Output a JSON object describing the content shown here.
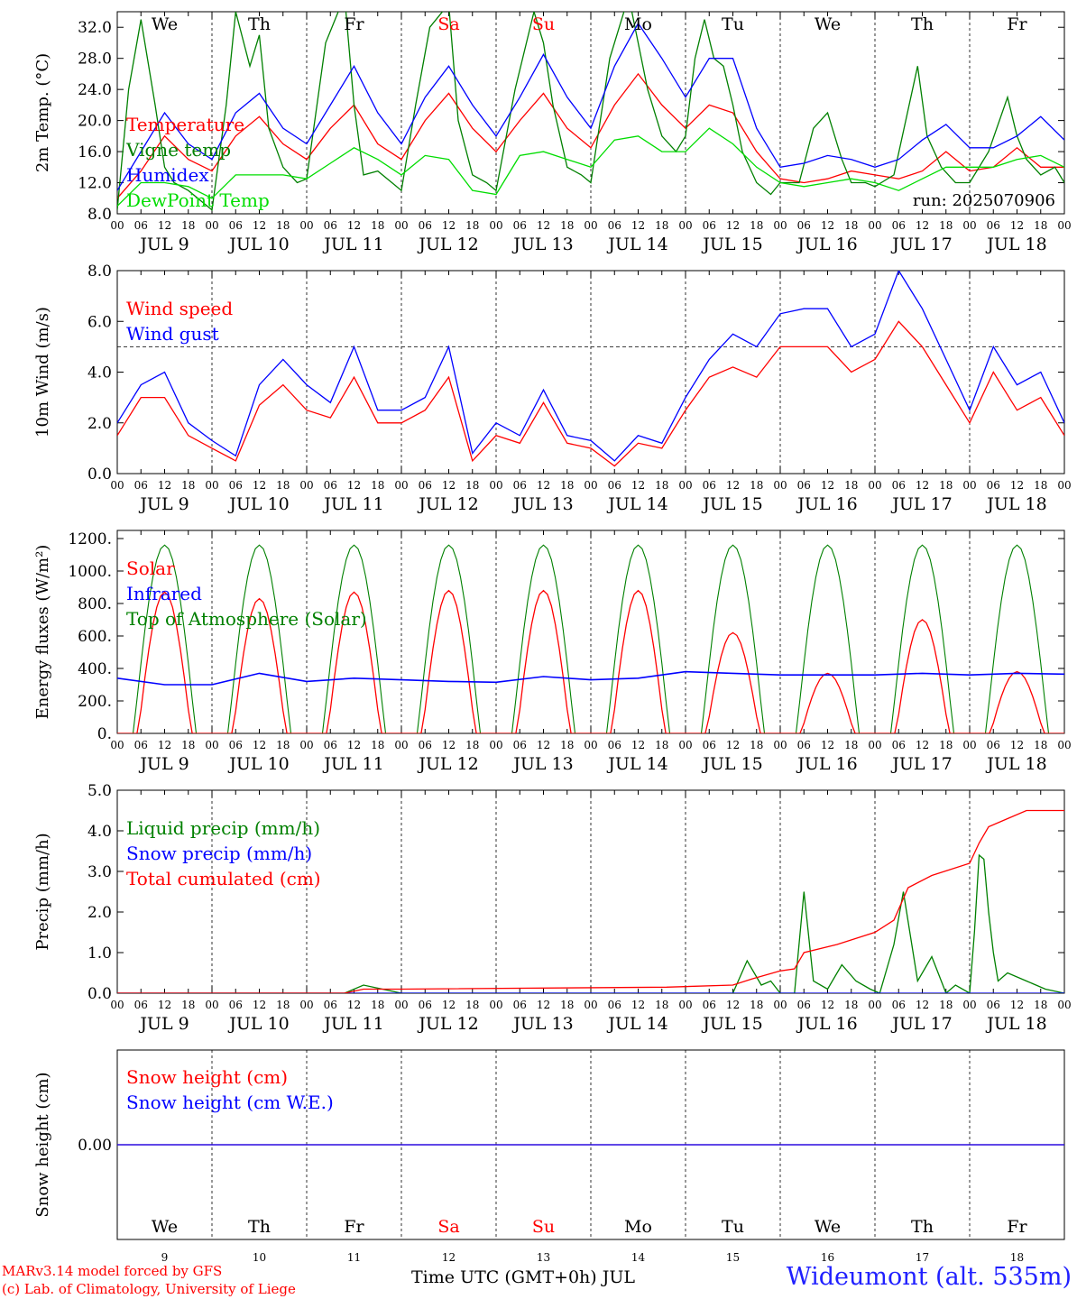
{
  "station": "Wideumont (alt. 535m)",
  "credits": [
    "MARv3.14 model forced by GFS",
    "(c) Lab. of Climatology, University of Liege"
  ],
  "xlabel": "Time UTC (GMT+0h) JUL",
  "run_label": "run: 2025070906",
  "colors": {
    "red": "#ff0000",
    "green": "#008000",
    "blue": "#0000ff",
    "lightgreen": "#00dd00",
    "weekend": "#ff0000"
  },
  "chart_data": {
    "type": "line",
    "x_axis": {
      "hours": [
        "00",
        "06",
        "12",
        "18"
      ],
      "days": [
        "JUL  9",
        "JUL 10",
        "JUL 11",
        "JUL 12",
        "JUL 13",
        "JUL 14",
        "JUL 15",
        "JUL 16",
        "JUL 17",
        "JUL 18"
      ],
      "weekdays": [
        "We",
        "Th",
        "Fr",
        "Sa",
        "Su",
        "Mo",
        "Tu",
        "We",
        "Th",
        "Fr"
      ],
      "weekend_index": [
        3,
        4
      ],
      "day_numbers": [
        "9",
        "10",
        "11",
        "12",
        "13",
        "14",
        "15",
        "16",
        "17",
        "18"
      ],
      "xlim_days": [
        0,
        10
      ]
    },
    "panels": [
      {
        "id": "temperature",
        "ylabel": "2m Temp. (°C)",
        "ylim": [
          8,
          34
        ],
        "yticks": [
          "8.0",
          "12.0",
          "16.0",
          "20.0",
          "24.0",
          "28.0",
          "32.0"
        ],
        "ytick_values": [
          8,
          12,
          16,
          20,
          24,
          28,
          32
        ],
        "series": [
          {
            "name": "Temperature",
            "color": "red",
            "x": [
              0,
              0.25,
              0.5,
              0.75,
              1,
              1.25,
              1.5,
              1.75,
              2,
              2.25,
              2.5,
              2.75,
              3,
              3.25,
              3.5,
              3.75,
              4,
              4.25,
              4.5,
              4.75,
              5,
              5.25,
              5.5,
              5.75,
              6,
              6.25,
              6.5,
              6.75,
              7,
              7.25,
              7.5,
              7.75,
              8,
              8.25,
              8.5,
              8.75,
              9,
              9.25,
              9.5,
              9.75,
              10
            ],
            "y": [
              10,
              13.5,
              18,
              15,
              13.5,
              18,
              20.5,
              17,
              15,
              19,
              22,
              17,
              15,
              20,
              23.5,
              19,
              16,
              20,
              23.5,
              19,
              16.5,
              22,
              26,
              22,
              19,
              22,
              21,
              16,
              12.5,
              12,
              12.5,
              13.5,
              13,
              12.5,
              13.5,
              16,
              13.5,
              14,
              16.5,
              14,
              14
            ]
          },
          {
            "name": "Vigne temp",
            "color": "green",
            "x": [
              0,
              0.12,
              0.25,
              0.4,
              0.5,
              0.6,
              0.75,
              0.9,
              1,
              1.15,
              1.25,
              1.4,
              1.5,
              1.6,
              1.75,
              1.9,
              2,
              2.2,
              2.4,
              2.5,
              2.6,
              2.75,
              2.9,
              3,
              3.15,
              3.3,
              3.5,
              3.6,
              3.75,
              3.9,
              4,
              4.2,
              4.4,
              4.5,
              4.6,
              4.75,
              4.9,
              5,
              5.2,
              5.4,
              5.5,
              5.6,
              5.75,
              5.9,
              6,
              6.1,
              6.2,
              6.3,
              6.4,
              6.5,
              6.6,
              6.75,
              6.9,
              7,
              7.2,
              7.35,
              7.5,
              7.65,
              7.75,
              7.9,
              8,
              8.2,
              8.45,
              8.55,
              8.7,
              8.85,
              9,
              9.2,
              9.4,
              9.5,
              9.6,
              9.75,
              9.9,
              10
            ],
            "y": [
              8.5,
              24,
              33,
              22,
              14,
              12,
              11,
              9.5,
              8.5,
              22,
              34,
              27,
              31,
              19,
              14,
              12,
              12.5,
              30,
              36,
              22,
              13,
              13.5,
              12,
              11,
              22,
              32,
              35,
              20,
              13,
              12,
              11,
              24,
              34,
              30,
              22,
              14,
              13,
              12,
              28,
              36,
              30,
              24,
              18,
              16,
              18,
              28,
              33,
              28,
              27,
              22,
              16,
              12,
              10.5,
              12,
              12,
              19,
              21,
              15,
              12,
              12,
              11.5,
              13,
              27,
              18,
              14,
              12,
              12,
              16,
              23,
              18,
              15,
              13,
              14,
              12
            ]
          },
          {
            "name": "Humidex",
            "color": "blue",
            "x": [
              0,
              0.25,
              0.5,
              0.75,
              1,
              1.25,
              1.5,
              1.75,
              2,
              2.25,
              2.5,
              2.75,
              3,
              3.25,
              3.5,
              3.75,
              4,
              4.25,
              4.5,
              4.75,
              5,
              5.25,
              5.5,
              5.75,
              6,
              6.25,
              6.5,
              6.75,
              7,
              7.25,
              7.5,
              7.75,
              8,
              8.25,
              8.5,
              8.75,
              9,
              9.25,
              9.5,
              9.75,
              10
            ],
            "y": [
              11,
              16,
              21,
              17,
              15,
              21,
              23.5,
              19,
              17,
              22,
              27,
              21,
              17,
              23,
              27,
              22,
              18,
              23,
              28.5,
              23,
              19,
              27,
              32.5,
              28,
              23,
              28,
              28,
              19,
              14,
              14.5,
              15.5,
              15,
              14,
              15,
              17.5,
              19.5,
              16.5,
              16.5,
              18,
              20.5,
              17.5
            ]
          },
          {
            "name": "DewPoint Temp",
            "color": "lightgreen",
            "x": [
              0,
              0.25,
              0.5,
              0.75,
              1,
              1.25,
              1.5,
              1.75,
              2,
              2.25,
              2.5,
              2.75,
              3,
              3.25,
              3.5,
              3.75,
              4,
              4.25,
              4.5,
              4.75,
              5,
              5.25,
              5.5,
              5.75,
              6,
              6.25,
              6.5,
              6.75,
              7,
              7.25,
              7.5,
              7.75,
              8,
              8.25,
              8.5,
              8.75,
              9,
              9.25,
              9.5,
              9.75,
              10
            ],
            "y": [
              9,
              12,
              12,
              11.5,
              10,
              13,
              13,
              13,
              12.5,
              14.5,
              16.5,
              15,
              13,
              15.5,
              15,
              11,
              10.5,
              15.5,
              16,
              15,
              14,
              17.5,
              18,
              16,
              16,
              19,
              17,
              14,
              12,
              11.5,
              12,
              12.5,
              12,
              11,
              12.5,
              14,
              14,
              14,
              15,
              15.5,
              14
            ]
          }
        ]
      },
      {
        "id": "wind",
        "ylabel": "10m Wind (m/s)",
        "ylim": [
          0,
          8
        ],
        "yticks": [
          "0.0",
          "2.0",
          "4.0",
          "6.0",
          "8.0"
        ],
        "ytick_values": [
          0,
          2,
          4,
          6,
          8
        ],
        "hline": 5,
        "series": [
          {
            "name": "Wind speed",
            "color": "red",
            "x": [
              0,
              0.25,
              0.5,
              0.75,
              1,
              1.25,
              1.5,
              1.75,
              2,
              2.25,
              2.5,
              2.75,
              3,
              3.25,
              3.5,
              3.75,
              4,
              4.25,
              4.5,
              4.75,
              5,
              5.25,
              5.5,
              5.75,
              6,
              6.25,
              6.5,
              6.75,
              7,
              7.25,
              7.5,
              7.75,
              8,
              8.25,
              8.5,
              8.75,
              9,
              9.25,
              9.5,
              9.75,
              10
            ],
            "y": [
              1.5,
              3,
              3,
              1.5,
              1,
              0.5,
              2.7,
              3.5,
              2.5,
              2.2,
              3.8,
              2,
              2,
              2.5,
              3.8,
              0.5,
              1.5,
              1.2,
              2.8,
              1.2,
              1,
              0.3,
              1.2,
              1,
              2.5,
              3.8,
              4.2,
              3.8,
              5,
              5,
              5,
              4,
              4.5,
              6,
              5,
              3.5,
              2,
              4,
              2.5,
              3,
              1.5
            ]
          },
          {
            "name": "Wind gust",
            "color": "blue",
            "x": [
              0,
              0.25,
              0.5,
              0.75,
              1,
              1.25,
              1.5,
              1.75,
              2,
              2.25,
              2.5,
              2.75,
              3,
              3.25,
              3.5,
              3.75,
              4,
              4.25,
              4.5,
              4.75,
              5,
              5.25,
              5.5,
              5.75,
              6,
              6.25,
              6.5,
              6.75,
              7,
              7.25,
              7.5,
              7.75,
              8,
              8.25,
              8.5,
              8.75,
              9,
              9.25,
              9.5,
              9.75,
              10
            ],
            "y": [
              2,
              3.5,
              4,
              2,
              1.3,
              0.7,
              3.5,
              4.5,
              3.5,
              2.8,
              5,
              2.5,
              2.5,
              3,
              5,
              0.8,
              2,
              1.5,
              3.3,
              1.5,
              1.3,
              0.5,
              1.5,
              1.2,
              3,
              4.5,
              5.5,
              5,
              6.3,
              6.5,
              6.5,
              5,
              5.5,
              8,
              6.5,
              4.5,
              2.5,
              5,
              3.5,
              4,
              2
            ]
          }
        ]
      },
      {
        "id": "energy",
        "ylabel": "Energy fluxes (W/m²)",
        "ylim": [
          0,
          1250
        ],
        "yticks": [
          "0.",
          "200.",
          "400.",
          "600.",
          "800.",
          "1000.",
          "1200."
        ],
        "ytick_values": [
          0,
          200,
          400,
          600,
          800,
          1000,
          1200
        ],
        "toa_peak": 1160,
        "solar_peaks": [
          870,
          830,
          870,
          880,
          880,
          880,
          620,
          370,
          700,
          380
        ],
        "series": [
          {
            "name": "Solar",
            "color": "red"
          },
          {
            "name": "Infrared",
            "color": "blue",
            "x": [
              0,
              0.5,
              1,
              1.5,
              2,
              2.5,
              3,
              3.5,
              4,
              4.5,
              5,
              5.5,
              6,
              6.5,
              7,
              7.5,
              8,
              8.5,
              9,
              9.5,
              10
            ],
            "y": [
              340,
              300,
              300,
              370,
              320,
              340,
              330,
              320,
              315,
              350,
              330,
              340,
              380,
              370,
              360,
              360,
              360,
              370,
              360,
              370,
              365
            ]
          },
          {
            "name": "Top of Atmosphere (Solar)",
            "color": "green"
          }
        ]
      },
      {
        "id": "precip",
        "ylabel": "Precip (mm/h)",
        "ylim": [
          0,
          5
        ],
        "yticks": [
          "0.0",
          "1.0",
          "2.0",
          "3.0",
          "4.0",
          "5.0"
        ],
        "ytick_values": [
          0,
          1,
          2,
          3,
          4,
          5
        ],
        "series": [
          {
            "name": "Liquid precip (mm/h)",
            "color": "green",
            "x": [
              0,
              2.4,
              2.6,
              2.8,
              3,
              6.5,
              6.65,
              6.8,
              6.9,
              7,
              7.15,
              7.25,
              7.35,
              7.5,
              7.65,
              7.8,
              7.95,
              8.05,
              8.2,
              8.3,
              8.45,
              8.6,
              8.75,
              8.85,
              9,
              9.05,
              9.1,
              9.15,
              9.2,
              9.25,
              9.3,
              9.4,
              9.6,
              9.8,
              10
            ],
            "y": [
              0,
              0,
              0.2,
              0.1,
              0,
              0,
              0.8,
              0.2,
              0.3,
              0,
              0,
              2.5,
              0.3,
              0.1,
              0.7,
              0.3,
              0.1,
              0,
              1.2,
              2.5,
              0.3,
              0.9,
              0,
              0.2,
              0,
              1.5,
              3.4,
              3.3,
              2.0,
              1.0,
              0.3,
              0.5,
              0.3,
              0.1,
              0
            ]
          },
          {
            "name": "Snow precip (mm/h)",
            "color": "blue",
            "x": [
              0,
              10
            ],
            "y": [
              0,
              0
            ]
          },
          {
            "name": "Total cumulated (cm)",
            "color": "red",
            "x": [
              0,
              2.4,
              2.6,
              3,
              5.8,
              6.5,
              6.7,
              7,
              7.15,
              7.25,
              7.6,
              8,
              8.2,
              8.35,
              8.6,
              9,
              9.1,
              9.2,
              9.4,
              9.6,
              10
            ],
            "y": [
              0,
              0,
              0.1,
              0.1,
              0.15,
              0.2,
              0.35,
              0.55,
              0.6,
              1.0,
              1.2,
              1.5,
              1.8,
              2.6,
              2.9,
              3.2,
              3.7,
              4.1,
              4.3,
              4.5,
              4.5
            ]
          }
        ]
      },
      {
        "id": "snow",
        "ylabel": "Snow height (cm)",
        "ylim": [
          -1,
          1
        ],
        "yticks": [
          "0.00"
        ],
        "ytick_values": [
          0
        ],
        "series": [
          {
            "name": "Snow height (cm)",
            "color": "red",
            "x": [
              0,
              10
            ],
            "y": [
              0,
              0
            ]
          },
          {
            "name": "Snow height (cm W.E.)",
            "color": "blue",
            "x": [
              0,
              10
            ],
            "y": [
              0,
              0
            ]
          }
        ]
      }
    ]
  }
}
